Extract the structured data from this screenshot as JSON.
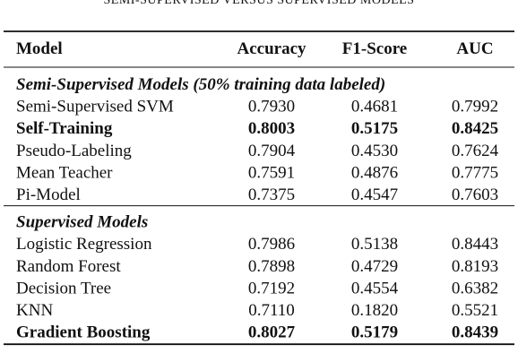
{
  "title": "SEMI-SUPERVISED VERSUS SUPERVISED MODELS",
  "table": {
    "columns": [
      "Model",
      "Accuracy",
      "F1-Score",
      "AUC"
    ],
    "sections": [
      {
        "label": "Semi-Supervised Models (50% training data labeled)",
        "rows": [
          {
            "cells": [
              "Semi-Supervised SVM",
              "0.7930",
              "0.4681",
              "0.7992"
            ],
            "bold": false
          },
          {
            "cells": [
              "Self-Training",
              "0.8003",
              "0.5175",
              "0.8425"
            ],
            "bold": true
          },
          {
            "cells": [
              "Pseudo-Labeling",
              "0.7904",
              "0.4530",
              "0.7624"
            ],
            "bold": false
          },
          {
            "cells": [
              "Mean Teacher",
              "0.7591",
              "0.4876",
              "0.7775"
            ],
            "bold": false
          },
          {
            "cells": [
              "Pi-Model",
              "0.7375",
              "0.4547",
              "0.7603"
            ],
            "bold": false
          }
        ]
      },
      {
        "label": "Supervised Models",
        "rows": [
          {
            "cells": [
              "Logistic Regression",
              "0.7986",
              "0.5138",
              "0.8443"
            ],
            "bold": false
          },
          {
            "cells": [
              "Random Forest",
              "0.7898",
              "0.4729",
              "0.8193"
            ],
            "bold": false
          },
          {
            "cells": [
              "Decision Tree",
              "0.7192",
              "0.4554",
              "0.6382"
            ],
            "bold": false
          },
          {
            "cells": [
              "KNN",
              "0.7110",
              "0.1820",
              "0.5521"
            ],
            "bold": false
          },
          {
            "cells": [
              "Gradient Boosting",
              "0.8027",
              "0.5179",
              "0.8439"
            ],
            "bold": true
          }
        ]
      }
    ]
  }
}
